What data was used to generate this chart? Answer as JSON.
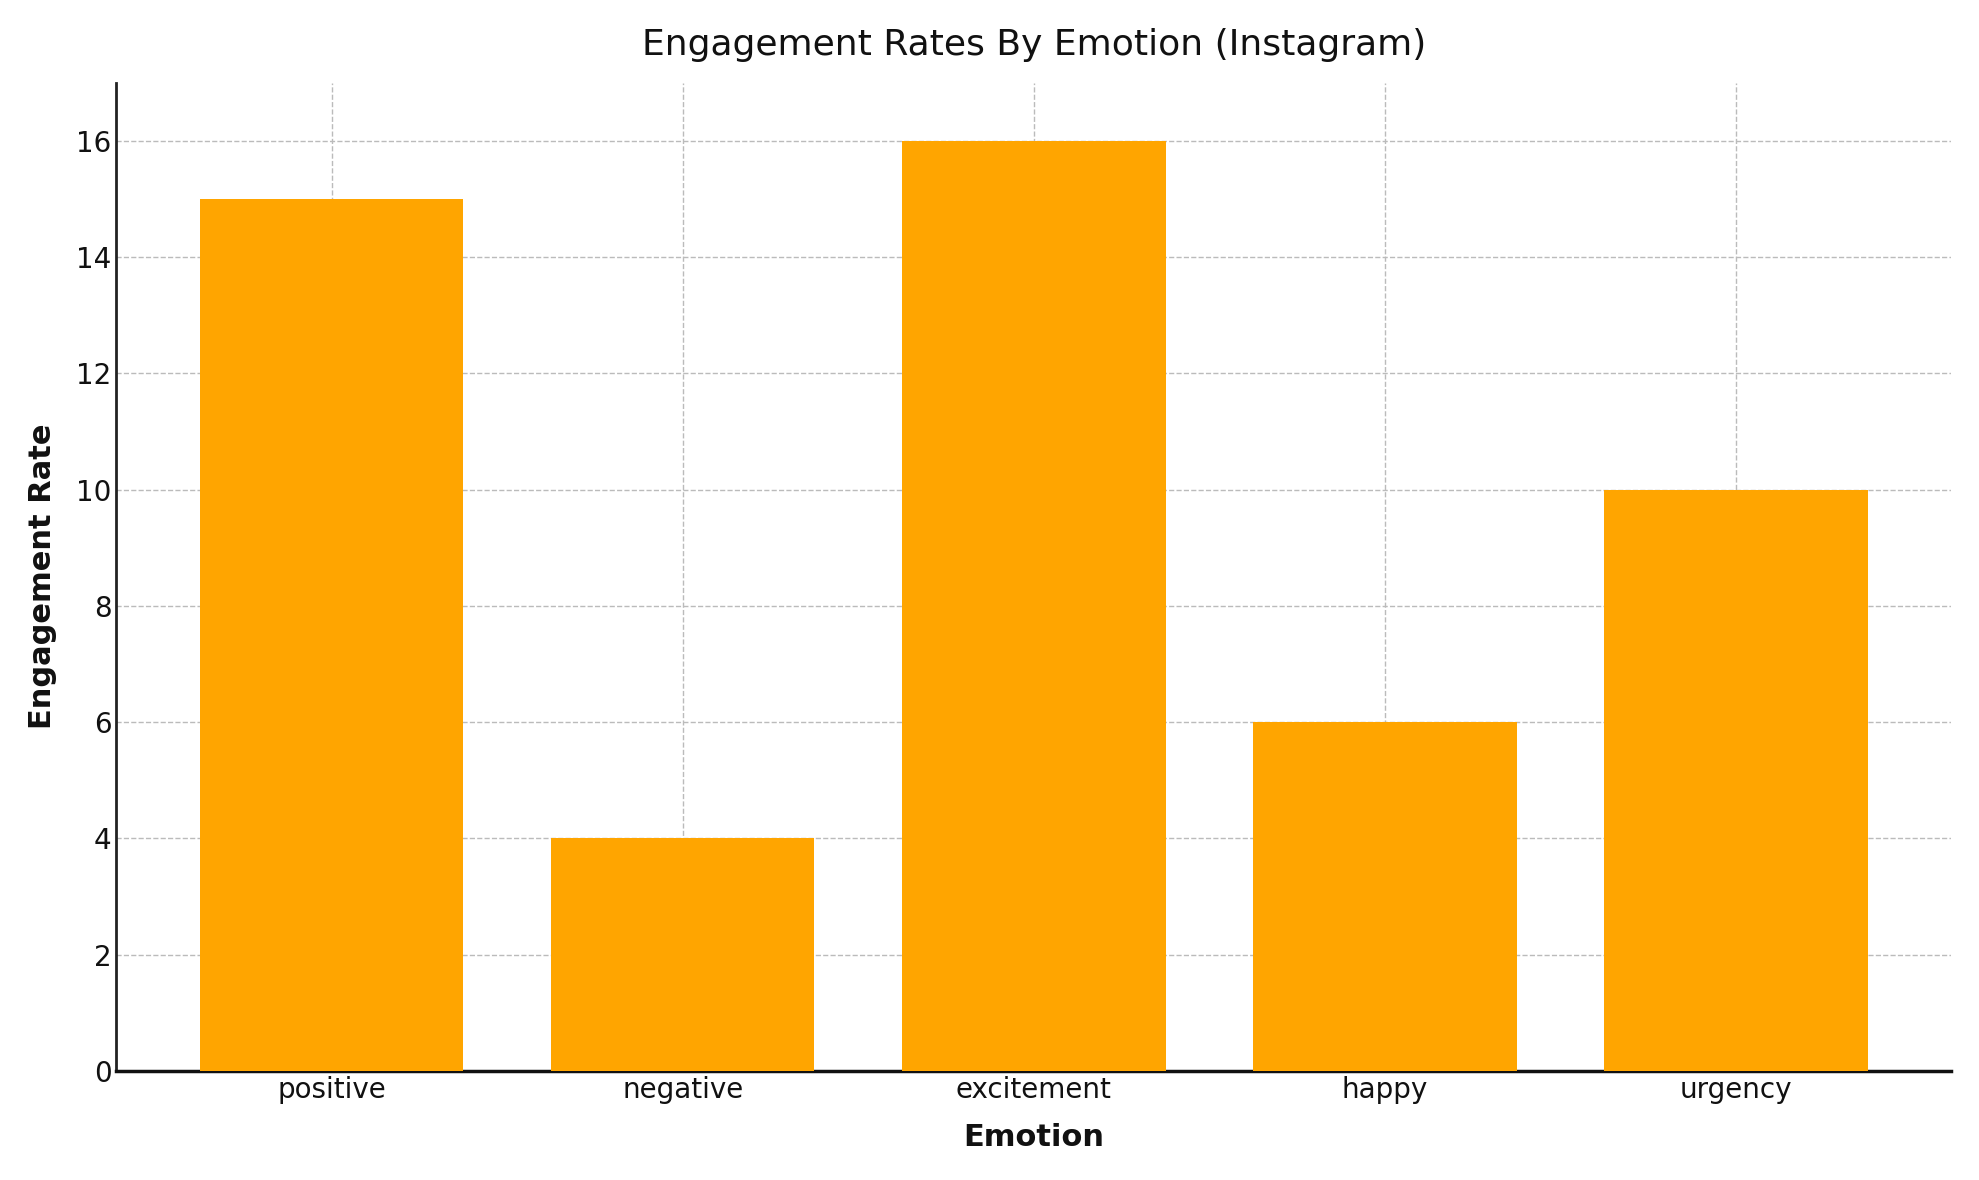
{
  "title": "Engagement Rates By Emotion (Instagram)",
  "xlabel": "Emotion",
  "ylabel": "Engagement Rate",
  "categories": [
    "positive",
    "negative",
    "excitement",
    "happy",
    "urgency"
  ],
  "values": [
    15,
    4,
    16,
    6,
    10
  ],
  "bar_color": "#FFA500",
  "background_color": "#ffffff",
  "ylim": [
    0,
    17
  ],
  "yticks": [
    0,
    2,
    4,
    6,
    8,
    10,
    12,
    14,
    16
  ],
  "title_fontsize": 26,
  "axis_label_fontsize": 22,
  "tick_fontsize": 20,
  "grid_color": "#bbbbbb",
  "grid_linestyle": "--",
  "bar_width": 0.75,
  "left_spine_color": "#222222",
  "bottom_spine_color": "#111111"
}
